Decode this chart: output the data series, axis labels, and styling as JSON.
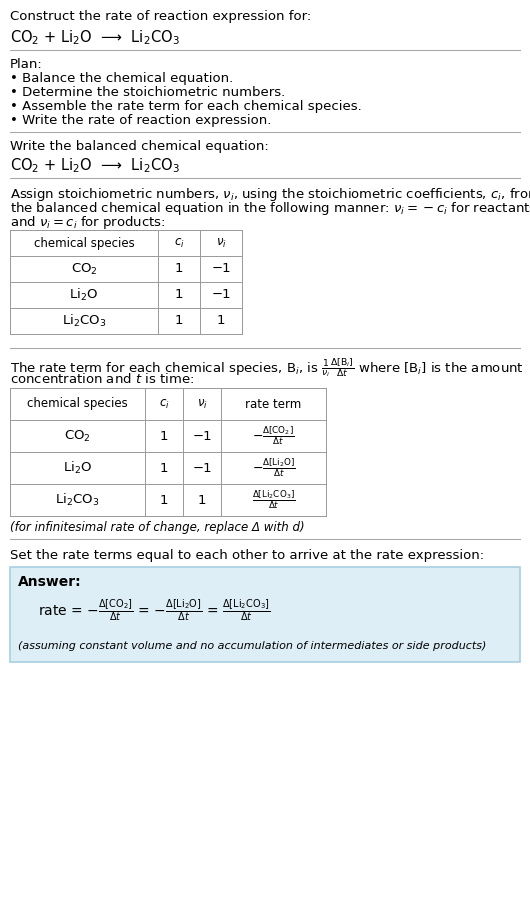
{
  "title_line1": "Construct the rate of reaction expression for:",
  "title_line2": "CO$_2$ + Li$_2$O  ⟶  Li$_2$CO$_3$",
  "bg_color": "#ffffff",
  "section_bg": "#ddeef6",
  "divider_color": "#aaaaaa",
  "text_color": "#000000",
  "plan_header": "Plan:",
  "plan_items": [
    "• Balance the chemical equation.",
    "• Determine the stoichiometric numbers.",
    "• Assemble the rate term for each chemical species.",
    "• Write the rate of reaction expression."
  ],
  "balanced_header": "Write the balanced chemical equation:",
  "balanced_eq": "CO$_2$ + Li$_2$O  ⟶  Li$_2$CO$_3$",
  "stoich_intro1": "Assign stoichiometric numbers, $\\nu_i$, using the stoichiometric coefficients, $c_i$, from",
  "stoich_intro2": "the balanced chemical equation in the following manner: $\\nu_i = -c_i$ for reactants",
  "stoich_intro3": "and $\\nu_i = c_i$ for products:",
  "table1_col0_header": "chemical species",
  "table1_col1_header": "$c_i$",
  "table1_col2_header": "$\\nu_i$",
  "table1_rows": [
    [
      "CO$_2$",
      "1",
      "−1"
    ],
    [
      "Li$_2$O",
      "1",
      "−1"
    ],
    [
      "Li$_2$CO$_3$",
      "1",
      "1"
    ]
  ],
  "rate_intro1": "The rate term for each chemical species, B$_i$, is $\\frac{1}{\\nu_i}\\frac{\\Delta[\\mathrm{B}_i]}{\\Delta t}$ where [B$_i$] is the amount",
  "rate_intro2": "concentration and $t$ is time:",
  "table2_col0_header": "chemical species",
  "table2_col1_header": "$c_i$",
  "table2_col2_header": "$\\nu_i$",
  "table2_col3_header": "rate term",
  "table2_rows": [
    [
      "CO$_2$",
      "1",
      "−1",
      "$-\\frac{\\Delta[\\mathrm{CO_2}]}{\\Delta t}$"
    ],
    [
      "Li$_2$O",
      "1",
      "−1",
      "$-\\frac{\\Delta[\\mathrm{Li_2O}]}{\\Delta t}$"
    ],
    [
      "Li$_2$CO$_3$",
      "1",
      "1",
      "$\\frac{\\Delta[\\mathrm{Li_2CO_3}]}{\\Delta t}$"
    ]
  ],
  "infinitesimal_note": "(for infinitesimal rate of change, replace Δ with d)",
  "set_equal_text": "Set the rate terms equal to each other to arrive at the rate expression:",
  "answer_label": "Answer:",
  "answer_line1": "rate = $-\\frac{\\Delta[\\mathrm{CO_2}]}{\\Delta t}$ = $-\\frac{\\Delta[\\mathrm{Li_2O}]}{\\Delta t}$ = $\\frac{\\Delta[\\mathrm{Li_2CO_3}]}{\\Delta t}$",
  "assuming_note": "(assuming constant volume and no accumulation of intermediates or side products)"
}
